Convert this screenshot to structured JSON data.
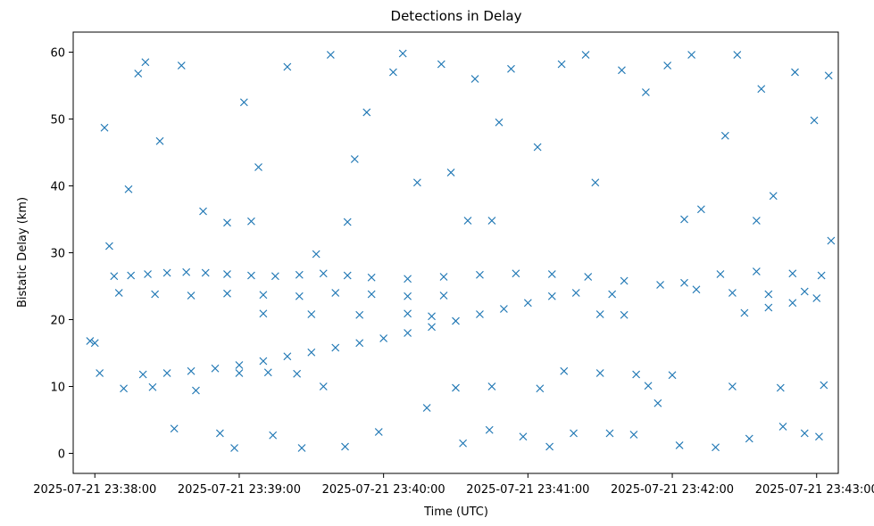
{
  "chart_data": {
    "type": "scatter",
    "title": "Detections in Delay",
    "xlabel": "Time (UTC)",
    "ylabel": "Bistatic Delay (km)",
    "x_ticks": [
      "2025-07-21 23:38:00",
      "2025-07-21 23:39:00",
      "2025-07-21 23:40:00",
      "2025-07-21 23:41:00",
      "2025-07-21 23:42:00",
      "2025-07-21 23:43:00"
    ],
    "y_ticks": [
      "0",
      "10",
      "20",
      "30",
      "40",
      "50",
      "60"
    ],
    "xlim": [
      "2025-07-21 23:37:51",
      "2025-07-21 23:43:09"
    ],
    "ylim": [
      -3,
      63
    ],
    "marker": "x",
    "marker_color": "#1f77b4",
    "grid": false,
    "series": [
      {
        "points": [
          [
            "2025-07-21 23:38:08",
            26.5
          ],
          [
            "2025-07-21 23:38:15",
            26.6
          ],
          [
            "2025-07-21 23:38:22",
            26.8
          ],
          [
            "2025-07-21 23:38:30",
            27.0
          ],
          [
            "2025-07-21 23:38:38",
            27.1
          ],
          [
            "2025-07-21 23:38:46",
            27.0
          ],
          [
            "2025-07-21 23:38:55",
            26.8
          ],
          [
            "2025-07-21 23:39:05",
            26.6
          ],
          [
            "2025-07-21 23:39:15",
            26.5
          ],
          [
            "2025-07-21 23:39:25",
            26.7
          ],
          [
            "2025-07-21 23:39:35",
            26.9
          ],
          [
            "2025-07-21 23:39:45",
            26.6
          ],
          [
            "2025-07-21 23:39:55",
            26.3
          ],
          [
            "2025-07-21 23:40:10",
            26.1
          ],
          [
            "2025-07-21 23:40:25",
            26.4
          ],
          [
            "2025-07-21 23:40:40",
            26.7
          ],
          [
            "2025-07-21 23:40:55",
            26.9
          ],
          [
            "2025-07-21 23:41:10",
            26.8
          ],
          [
            "2025-07-21 23:41:25",
            26.4
          ],
          [
            "2025-07-21 23:41:40",
            25.8
          ],
          [
            "2025-07-21 23:41:55",
            25.2
          ],
          [
            "2025-07-21 23:42:05",
            25.5
          ],
          [
            "2025-07-21 23:42:20",
            26.8
          ],
          [
            "2025-07-21 23:42:35",
            27.2
          ],
          [
            "2025-07-21 23:42:50",
            26.9
          ],
          [
            "2025-07-21 23:43:02",
            26.6
          ],
          [
            "2025-07-21 23:38:10",
            24.0
          ],
          [
            "2025-07-21 23:38:25",
            23.8
          ],
          [
            "2025-07-21 23:38:40",
            23.6
          ],
          [
            "2025-07-21 23:38:55",
            23.9
          ],
          [
            "2025-07-21 23:39:10",
            23.7
          ],
          [
            "2025-07-21 23:39:25",
            23.5
          ],
          [
            "2025-07-21 23:39:40",
            24.0
          ],
          [
            "2025-07-21 23:39:55",
            23.8
          ],
          [
            "2025-07-21 23:40:10",
            23.5
          ],
          [
            "2025-07-21 23:40:25",
            23.6
          ],
          [
            "2025-07-21 23:41:20",
            24.0
          ],
          [
            "2025-07-21 23:41:35",
            23.8
          ],
          [
            "2025-07-21 23:42:10",
            24.5
          ],
          [
            "2025-07-21 23:42:25",
            24.0
          ],
          [
            "2025-07-21 23:42:40",
            23.8
          ],
          [
            "2025-07-21 23:42:55",
            24.2
          ],
          [
            "2025-07-21 23:38:20",
            11.8
          ],
          [
            "2025-07-21 23:38:30",
            12.0
          ],
          [
            "2025-07-21 23:38:40",
            12.3
          ],
          [
            "2025-07-21 23:38:50",
            12.7
          ],
          [
            "2025-07-21 23:39:00",
            13.2
          ],
          [
            "2025-07-21 23:39:10",
            13.8
          ],
          [
            "2025-07-21 23:39:20",
            14.5
          ],
          [
            "2025-07-21 23:39:30",
            15.1
          ],
          [
            "2025-07-21 23:39:40",
            15.8
          ],
          [
            "2025-07-21 23:39:50",
            16.5
          ],
          [
            "2025-07-21 23:40:00",
            17.2
          ],
          [
            "2025-07-21 23:40:10",
            18.0
          ],
          [
            "2025-07-21 23:40:20",
            18.9
          ],
          [
            "2025-07-21 23:40:30",
            19.8
          ],
          [
            "2025-07-21 23:40:40",
            20.8
          ],
          [
            "2025-07-21 23:40:50",
            21.6
          ],
          [
            "2025-07-21 23:41:00",
            22.5
          ],
          [
            "2025-07-21 23:41:10",
            23.5
          ],
          [
            "2025-07-21 23:42:30",
            21.0
          ],
          [
            "2025-07-21 23:42:40",
            21.8
          ],
          [
            "2025-07-21 23:42:50",
            22.5
          ],
          [
            "2025-07-21 23:43:00",
            23.2
          ],
          [
            "2025-07-21 23:39:00",
            12.0
          ],
          [
            "2025-07-21 23:39:12",
            12.1
          ],
          [
            "2025-07-21 23:39:24",
            11.9
          ],
          [
            "2025-07-21 23:41:15",
            12.3
          ],
          [
            "2025-07-21 23:41:30",
            12.0
          ],
          [
            "2025-07-21 23:41:45",
            11.8
          ],
          [
            "2025-07-21 23:42:00",
            11.7
          ],
          [
            "2025-07-21 23:38:12",
            9.7
          ],
          [
            "2025-07-21 23:38:24",
            9.9
          ],
          [
            "2025-07-21 23:39:35",
            10.0
          ],
          [
            "2025-07-21 23:40:30",
            9.8
          ],
          [
            "2025-07-21 23:40:45",
            10.0
          ],
          [
            "2025-07-21 23:41:05",
            9.7
          ],
          [
            "2025-07-21 23:41:50",
            10.1
          ],
          [
            "2025-07-21 23:42:25",
            10.0
          ],
          [
            "2025-07-21 23:42:45",
            9.8
          ],
          [
            "2025-07-21 23:43:03",
            10.2
          ],
          [
            "2025-07-21 23:39:10",
            20.9
          ],
          [
            "2025-07-21 23:39:30",
            20.8
          ],
          [
            "2025-07-21 23:39:50",
            20.7
          ],
          [
            "2025-07-21 23:40:10",
            20.9
          ],
          [
            "2025-07-21 23:40:20",
            20.5
          ],
          [
            "2025-07-21 23:41:30",
            20.8
          ],
          [
            "2025-07-21 23:41:40",
            20.7
          ],
          [
            "2025-07-21 23:38:55",
            34.5
          ],
          [
            "2025-07-21 23:39:05",
            34.7
          ],
          [
            "2025-07-21 23:39:45",
            34.6
          ],
          [
            "2025-07-21 23:40:35",
            34.8
          ],
          [
            "2025-07-21 23:40:45",
            34.8
          ],
          [
            "2025-07-21 23:42:05",
            35.0
          ],
          [
            "2025-07-21 23:42:35",
            34.8
          ],
          [
            "2025-07-21 23:37:58",
            16.8
          ],
          [
            "2025-07-21 23:38:00",
            16.5
          ],
          [
            "2025-07-21 23:38:02",
            12.0
          ],
          [
            "2025-07-21 23:38:04",
            48.7
          ],
          [
            "2025-07-21 23:38:06",
            31.0
          ],
          [
            "2025-07-21 23:38:14",
            39.5
          ],
          [
            "2025-07-21 23:38:18",
            56.8
          ],
          [
            "2025-07-21 23:38:21",
            58.5
          ],
          [
            "2025-07-21 23:38:27",
            46.7
          ],
          [
            "2025-07-21 23:38:33",
            3.7
          ],
          [
            "2025-07-21 23:38:36",
            58.0
          ],
          [
            "2025-07-21 23:38:42",
            9.4
          ],
          [
            "2025-07-21 23:38:45",
            36.2
          ],
          [
            "2025-07-21 23:38:52",
            3.0
          ],
          [
            "2025-07-21 23:38:58",
            0.8
          ],
          [
            "2025-07-21 23:39:02",
            52.5
          ],
          [
            "2025-07-21 23:39:08",
            42.8
          ],
          [
            "2025-07-21 23:39:14",
            2.7
          ],
          [
            "2025-07-21 23:39:20",
            57.8
          ],
          [
            "2025-07-21 23:39:26",
            0.8
          ],
          [
            "2025-07-21 23:39:32",
            29.8
          ],
          [
            "2025-07-21 23:39:38",
            59.6
          ],
          [
            "2025-07-21 23:39:44",
            1.0
          ],
          [
            "2025-07-21 23:39:48",
            44.0
          ],
          [
            "2025-07-21 23:39:53",
            51.0
          ],
          [
            "2025-07-21 23:39:58",
            3.2
          ],
          [
            "2025-07-21 23:40:04",
            57.0
          ],
          [
            "2025-07-21 23:40:08",
            59.8
          ],
          [
            "2025-07-21 23:40:14",
            40.5
          ],
          [
            "2025-07-21 23:40:18",
            6.8
          ],
          [
            "2025-07-21 23:40:24",
            58.2
          ],
          [
            "2025-07-21 23:40:28",
            42.0
          ],
          [
            "2025-07-21 23:40:33",
            1.5
          ],
          [
            "2025-07-21 23:40:38",
            56.0
          ],
          [
            "2025-07-21 23:40:44",
            3.5
          ],
          [
            "2025-07-21 23:40:48",
            49.5
          ],
          [
            "2025-07-21 23:40:53",
            57.5
          ],
          [
            "2025-07-21 23:40:58",
            2.5
          ],
          [
            "2025-07-21 23:41:04",
            45.8
          ],
          [
            "2025-07-21 23:41:09",
            1.0
          ],
          [
            "2025-07-21 23:41:14",
            58.2
          ],
          [
            "2025-07-21 23:41:19",
            3.0
          ],
          [
            "2025-07-21 23:41:24",
            59.6
          ],
          [
            "2025-07-21 23:41:28",
            40.5
          ],
          [
            "2025-07-21 23:41:34",
            3.0
          ],
          [
            "2025-07-21 23:41:39",
            57.3
          ],
          [
            "2025-07-21 23:41:44",
            2.8
          ],
          [
            "2025-07-21 23:41:49",
            54.0
          ],
          [
            "2025-07-21 23:41:54",
            7.5
          ],
          [
            "2025-07-21 23:41:58",
            58.0
          ],
          [
            "2025-07-21 23:42:03",
            1.2
          ],
          [
            "2025-07-21 23:42:08",
            59.6
          ],
          [
            "2025-07-21 23:42:12",
            36.5
          ],
          [
            "2025-07-21 23:42:18",
            0.9
          ],
          [
            "2025-07-21 23:42:22",
            47.5
          ],
          [
            "2025-07-21 23:42:27",
            59.6
          ],
          [
            "2025-07-21 23:42:32",
            2.2
          ],
          [
            "2025-07-21 23:42:37",
            54.5
          ],
          [
            "2025-07-21 23:42:42",
            38.5
          ],
          [
            "2025-07-21 23:42:46",
            4.0
          ],
          [
            "2025-07-21 23:42:51",
            57.0
          ],
          [
            "2025-07-21 23:42:55",
            3.0
          ],
          [
            "2025-07-21 23:42:59",
            49.8
          ],
          [
            "2025-07-21 23:43:01",
            2.5
          ],
          [
            "2025-07-21 23:43:05",
            56.5
          ],
          [
            "2025-07-21 23:43:06",
            31.8
          ]
        ]
      }
    ]
  }
}
